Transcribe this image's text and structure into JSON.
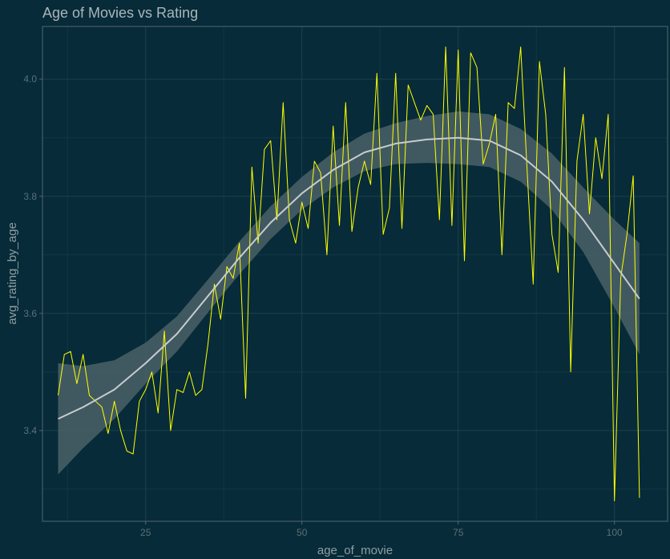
{
  "chart_data": {
    "type": "line",
    "title": "Age of Movies vs Rating",
    "xlabel": "age_of_movie",
    "ylabel": "avg_rating_by_age",
    "xlim": [
      8.5,
      108.5
    ],
    "ylim": [
      3.245,
      4.09
    ],
    "x_ticks": [
      25,
      50,
      75,
      100
    ],
    "y_ticks": [
      3.4,
      3.6,
      3.8,
      4.0
    ],
    "x_tick_labels": [
      "25",
      "50",
      "75",
      "100"
    ],
    "y_tick_labels": [
      "3.4",
      "3.6",
      "3.8",
      "4.0"
    ],
    "grid": true,
    "legend": "none",
    "colors": {
      "background": "#072b38",
      "panel_border": "#52676f",
      "grid_major": "#1e414d",
      "grid_minor": "#123845",
      "series": "#ffff00",
      "smooth_line": "#c8ccce",
      "smooth_band": "#4a6169"
    },
    "series": [
      {
        "x": [
          11,
          12,
          13,
          14,
          15,
          16,
          17,
          18,
          19,
          20,
          21,
          22,
          23,
          24,
          25,
          26,
          27,
          28,
          29,
          30,
          31,
          32,
          33,
          34,
          35,
          36,
          37,
          38,
          39,
          40,
          41,
          42,
          43,
          44,
          45,
          46,
          47,
          48,
          49,
          50,
          51,
          52,
          53,
          54,
          55,
          56,
          57,
          58,
          59,
          60,
          61,
          62,
          63,
          64,
          65,
          66,
          67,
          68,
          69,
          70,
          71,
          72,
          73,
          74,
          75,
          76,
          77,
          78,
          79,
          80,
          81,
          82,
          83,
          84,
          85,
          86,
          87,
          88,
          89,
          90,
          91,
          92,
          93,
          94,
          95,
          96,
          97,
          98,
          99,
          100,
          101,
          102,
          103,
          104
        ],
        "y": [
          3.46,
          3.53,
          3.535,
          3.48,
          3.53,
          3.46,
          3.45,
          3.44,
          3.395,
          3.45,
          3.4,
          3.365,
          3.36,
          3.45,
          3.47,
          3.5,
          3.43,
          3.57,
          3.4,
          3.47,
          3.465,
          3.5,
          3.46,
          3.47,
          3.55,
          3.65,
          3.59,
          3.68,
          3.66,
          3.72,
          3.455,
          3.85,
          3.72,
          3.88,
          3.895,
          3.76,
          3.96,
          3.76,
          3.72,
          3.79,
          3.745,
          3.86,
          3.84,
          3.7,
          3.92,
          3.75,
          3.96,
          3.74,
          3.815,
          3.86,
          3.82,
          4.01,
          3.735,
          3.78,
          4.01,
          3.745,
          3.99,
          3.96,
          3.93,
          3.955,
          3.94,
          3.76,
          4.055,
          3.75,
          4.05,
          3.69,
          4.045,
          4.02,
          3.855,
          3.89,
          3.94,
          3.7,
          3.96,
          3.95,
          4.055,
          3.85,
          3.65,
          4.03,
          3.94,
          3.735,
          3.67,
          4.02,
          3.5,
          3.86,
          3.94,
          3.77,
          3.9,
          3.83,
          3.94,
          3.28,
          3.66,
          3.735,
          3.835,
          3.285
        ]
      }
    ],
    "smooth": {
      "x": [
        11,
        15,
        20,
        25,
        30,
        35,
        40,
        45,
        50,
        55,
        60,
        65,
        70,
        75,
        80,
        85,
        90,
        95,
        100,
        104
      ],
      "y": [
        3.42,
        3.44,
        3.47,
        3.515,
        3.565,
        3.63,
        3.695,
        3.755,
        3.805,
        3.845,
        3.875,
        3.89,
        3.897,
        3.9,
        3.895,
        3.87,
        3.825,
        3.76,
        3.685,
        3.625
      ],
      "band": [
        0.095,
        0.07,
        0.05,
        0.035,
        0.03,
        0.028,
        0.028,
        0.028,
        0.028,
        0.03,
        0.032,
        0.035,
        0.04,
        0.045,
        0.045,
        0.045,
        0.048,
        0.055,
        0.075,
        0.095
      ]
    }
  }
}
